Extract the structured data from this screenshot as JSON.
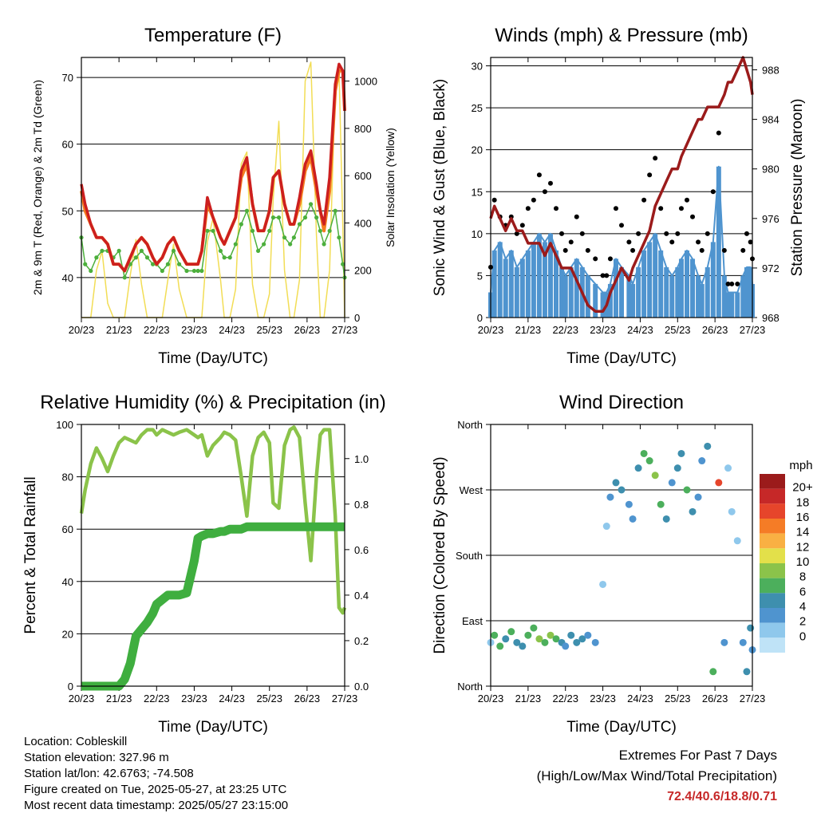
{
  "x_ticks": [
    "20/23",
    "21/23",
    "22/23",
    "23/23",
    "24/23",
    "25/23",
    "26/23",
    "27/23"
  ],
  "xlabel": "Time (Day/UTC)",
  "colors": {
    "temp_2m": "#cc1f1f",
    "temp_9m": "#f57c1f",
    "dewpoint": "#4caf3c",
    "solar": "#f2dd55",
    "wind": "#4f94cf",
    "gust": "#000000",
    "pressure": "#9b1b1b",
    "rh": "#8bc34a",
    "precip": "#3fae3f"
  },
  "chart_data": [
    {
      "type": "line",
      "title": "Temperature (F)",
      "xlabel": "Time (Day/UTC)",
      "ylabel": "2m & 9m T (Red, Orange) & 2m Td (Green)",
      "y2label": "Solar Insolation (Yellow)",
      "ylim": [
        34,
        73
      ],
      "y_ticks": [
        40,
        50,
        60,
        70
      ],
      "y2lim": [
        0,
        1100
      ],
      "y2_ticks": [
        0,
        200,
        400,
        600,
        800,
        1000
      ],
      "grid": true,
      "x": [
        20.0,
        20.1,
        20.25,
        20.4,
        20.55,
        20.7,
        20.85,
        21.0,
        21.15,
        21.3,
        21.45,
        21.6,
        21.75,
        21.9,
        22.0,
        22.15,
        22.3,
        22.45,
        22.6,
        22.8,
        23.0,
        23.1,
        23.2,
        23.35,
        23.5,
        23.7,
        23.8,
        23.95,
        24.1,
        24.25,
        24.4,
        24.55,
        24.7,
        24.85,
        25.0,
        25.1,
        25.25,
        25.4,
        25.55,
        25.65,
        25.8,
        25.95,
        26.1,
        26.25,
        26.35,
        26.45,
        26.6,
        26.75,
        26.85,
        26.95,
        27.0
      ],
      "series": [
        {
          "name": "2m T",
          "values": [
            54,
            51,
            48,
            46,
            46,
            45,
            42,
            42,
            41,
            43,
            45,
            46,
            45,
            43,
            42,
            43,
            45,
            46,
            44,
            42,
            42,
            42,
            44,
            52,
            49,
            46,
            45,
            47,
            49,
            56,
            58,
            51,
            47,
            47,
            50,
            55,
            56,
            51,
            48,
            48,
            52,
            57,
            59,
            54,
            50,
            48,
            55,
            69,
            72,
            71,
            65
          ]
        },
        {
          "name": "9m T",
          "values": [
            53,
            50,
            48,
            46,
            46,
            45,
            42,
            42,
            41,
            43,
            45,
            46,
            45,
            43,
            42,
            43,
            45,
            46,
            44,
            42,
            42,
            42,
            44,
            51,
            49,
            46,
            45,
            47,
            49,
            55,
            57,
            51,
            47,
            47,
            50,
            55,
            56,
            51,
            48,
            48,
            51,
            56,
            58,
            53,
            50,
            47,
            53,
            68,
            71,
            71,
            65
          ]
        },
        {
          "name": "2m Td",
          "values": [
            46,
            42,
            41,
            43,
            44,
            44,
            43,
            44,
            40,
            42,
            43,
            44,
            43,
            42,
            42,
            41,
            42,
            44,
            42,
            41,
            41,
            41,
            41,
            47,
            47,
            44,
            43,
            43,
            45,
            48,
            50,
            47,
            44,
            45,
            47,
            49,
            49,
            46,
            45,
            46,
            48,
            49,
            51,
            49,
            47,
            45,
            47,
            50,
            46,
            42,
            40
          ]
        },
        {
          "name": "Solar",
          "values": [
            0,
            0,
            0,
            200,
            280,
            60,
            0,
            0,
            0,
            180,
            330,
            140,
            0,
            0,
            0,
            0,
            160,
            310,
            120,
            0,
            0,
            0,
            0,
            320,
            420,
            160,
            0,
            0,
            120,
            650,
            700,
            140,
            0,
            0,
            100,
            500,
            830,
            200,
            0,
            0,
            160,
            1000,
            1080,
            350,
            0,
            0,
            200,
            980,
            1050,
            400,
            0
          ]
        }
      ]
    },
    {
      "type": "line",
      "title": "Winds (mph) & Pressure (mb)",
      "xlabel": "Time (Day/UTC)",
      "ylabel": "Sonic Wind & Gust (Blue, Black)",
      "y2label": "Station Pressure (Maroon)",
      "ylim": [
        0,
        31
      ],
      "y_ticks": [
        0,
        5,
        10,
        15,
        20,
        25,
        30
      ],
      "y2lim": [
        968,
        989
      ],
      "y2_ticks": [
        968,
        972,
        976,
        980,
        984,
        988
      ],
      "grid": true,
      "x": [
        20.0,
        20.1,
        20.25,
        20.4,
        20.55,
        20.7,
        20.85,
        21.0,
        21.15,
        21.3,
        21.45,
        21.6,
        21.75,
        21.9,
        22.0,
        22.15,
        22.3,
        22.45,
        22.6,
        22.8,
        23.0,
        23.1,
        23.2,
        23.35,
        23.5,
        23.7,
        23.8,
        23.95,
        24.1,
        24.25,
        24.4,
        24.55,
        24.7,
        24.85,
        25.0,
        25.1,
        25.25,
        25.4,
        25.55,
        25.65,
        25.8,
        25.95,
        26.1,
        26.25,
        26.35,
        26.45,
        26.6,
        26.75,
        26.85,
        26.95,
        27.0
      ],
      "series": [
        {
          "name": "Wind",
          "values": [
            3,
            8,
            9,
            7,
            8,
            6,
            7,
            8,
            9,
            10,
            9,
            10,
            8,
            6,
            5,
            6,
            7,
            6,
            5,
            4,
            3,
            3,
            4,
            7,
            6,
            5,
            4,
            6,
            8,
            9,
            10,
            8,
            6,
            5,
            6,
            7,
            8,
            7,
            5,
            4,
            6,
            9,
            18,
            5,
            3,
            3,
            3,
            5,
            6,
            6,
            4
          ]
        },
        {
          "name": "Gust",
          "values": [
            6,
            14,
            12,
            11,
            12,
            10,
            11,
            13,
            14,
            17,
            15,
            16,
            13,
            10,
            8,
            9,
            12,
            10,
            8,
            7,
            5,
            5,
            7,
            13,
            11,
            9,
            8,
            10,
            14,
            17,
            19,
            13,
            10,
            9,
            10,
            13,
            14,
            12,
            9,
            8,
            10,
            15,
            22,
            8,
            4,
            4,
            4,
            8,
            10,
            9,
            7
          ]
        },
        {
          "name": "Pressure",
          "values": [
            976,
            977,
            976,
            975,
            976,
            975,
            975,
            974,
            974,
            974,
            973,
            974,
            973,
            972,
            972,
            972,
            971,
            970,
            969,
            968.5,
            968.5,
            969,
            970,
            971,
            972,
            971,
            972,
            973,
            974,
            975,
            977,
            978,
            979,
            980,
            980,
            981,
            982,
            983,
            984,
            984,
            985,
            985,
            985,
            986,
            987,
            987,
            988,
            989,
            988,
            987,
            986
          ]
        }
      ]
    },
    {
      "type": "line",
      "title": "Relative Humidity (%) & Precipitation (in)",
      "xlabel": "Time (Day/UTC)",
      "ylabel": "Percent & Total Rainfall",
      "ylim": [
        0,
        100
      ],
      "y_ticks": [
        0,
        20,
        40,
        60,
        80,
        100
      ],
      "y2lim": [
        0,
        1.15
      ],
      "y2_ticks": [
        0.0,
        0.2,
        0.4,
        0.6,
        0.8,
        1.0
      ],
      "grid": true,
      "x": [
        20.0,
        20.1,
        20.25,
        20.4,
        20.55,
        20.7,
        20.85,
        21.0,
        21.15,
        21.3,
        21.45,
        21.6,
        21.75,
        21.9,
        22.0,
        22.15,
        22.3,
        22.45,
        22.6,
        22.8,
        23.0,
        23.1,
        23.2,
        23.35,
        23.5,
        23.7,
        23.8,
        23.95,
        24.1,
        24.25,
        24.4,
        24.55,
        24.7,
        24.85,
        25.0,
        25.1,
        25.25,
        25.4,
        25.55,
        25.65,
        25.8,
        25.95,
        26.1,
        26.25,
        26.35,
        26.45,
        26.6,
        26.75,
        26.85,
        26.95,
        27.0
      ],
      "series": [
        {
          "name": "RH",
          "values": [
            66,
            75,
            85,
            91,
            87,
            82,
            88,
            93,
            95,
            94,
            93,
            96,
            98,
            98,
            96,
            98,
            97,
            96,
            97,
            98,
            96,
            95,
            96,
            88,
            92,
            95,
            97,
            96,
            94,
            80,
            65,
            88,
            95,
            97,
            93,
            70,
            68,
            92,
            98,
            99,
            95,
            70,
            48,
            80,
            96,
            98,
            98,
            65,
            30,
            28,
            30
          ]
        },
        {
          "name": "Precip",
          "values": [
            0,
            0,
            0,
            0,
            0,
            0,
            0,
            0,
            0.03,
            0.1,
            0.22,
            0.25,
            0.28,
            0.32,
            0.36,
            0.38,
            0.4,
            0.4,
            0.4,
            0.41,
            0.55,
            0.65,
            0.66,
            0.67,
            0.67,
            0.68,
            0.68,
            0.69,
            0.69,
            0.69,
            0.7,
            0.7,
            0.7,
            0.7,
            0.7,
            0.7,
            0.7,
            0.7,
            0.7,
            0.7,
            0.7,
            0.7,
            0.7,
            0.7,
            0.7,
            0.7,
            0.7,
            0.7,
            0.7,
            0.7,
            0.7
          ]
        }
      ]
    },
    {
      "type": "scatter",
      "title": "Wind Direction",
      "xlabel": "Time (Day/UTC)",
      "ylabel": "Direction (Colored By Speed)",
      "y_ticks": [
        "North",
        "East",
        "South",
        "West",
        "North"
      ],
      "ylim": [
        0,
        360
      ],
      "grid": true,
      "legend": {
        "unit": "mph",
        "position": "right",
        "levels": [
          "0",
          "2",
          "4",
          "6",
          "8",
          "10",
          "12",
          "14",
          "16",
          "18",
          "20+"
        ],
        "colors": [
          "#bfe3f7",
          "#8fc8ec",
          "#4f94cf",
          "#3e8fae",
          "#4caf5c",
          "#8bc34a",
          "#e3e04a",
          "#f9b043",
          "#f57c26",
          "#e6452b",
          "#c62828",
          "#9b1b1b"
        ]
      },
      "x": [
        20.0,
        20.1,
        20.25,
        20.4,
        20.55,
        20.7,
        20.85,
        21.0,
        21.15,
        21.3,
        21.45,
        21.6,
        21.75,
        21.9,
        22.0,
        22.15,
        22.3,
        22.45,
        22.6,
        22.8,
        23.0,
        23.1,
        23.2,
        23.35,
        23.5,
        23.7,
        23.8,
        23.95,
        24.1,
        24.25,
        24.4,
        24.55,
        24.7,
        24.85,
        25.0,
        25.1,
        25.25,
        25.4,
        25.55,
        25.65,
        25.8,
        25.95,
        26.1,
        26.25,
        26.35,
        26.45,
        26.6,
        26.75,
        26.85,
        26.95,
        27.0
      ],
      "series": [
        {
          "name": "Direction",
          "values": [
            60,
            70,
            55,
            65,
            75,
            60,
            55,
            70,
            80,
            65,
            60,
            70,
            65,
            60,
            55,
            70,
            60,
            65,
            70,
            60,
            140,
            220,
            260,
            280,
            270,
            250,
            230,
            300,
            320,
            310,
            290,
            250,
            230,
            280,
            300,
            320,
            270,
            240,
            260,
            310,
            330,
            20,
            280,
            60,
            300,
            240,
            200,
            60,
            20,
            80,
            50
          ]
        },
        {
          "name": "Speed",
          "values": [
            3,
            8,
            9,
            7,
            8,
            6,
            7,
            8,
            9,
            10,
            9,
            10,
            8,
            6,
            5,
            6,
            7,
            6,
            5,
            4,
            3,
            3,
            4,
            7,
            6,
            5,
            4,
            6,
            8,
            9,
            10,
            8,
            6,
            5,
            6,
            7,
            8,
            7,
            5,
            4,
            6,
            9,
            18,
            5,
            3,
            3,
            3,
            5,
            6,
            6,
            4
          ]
        }
      ]
    }
  ],
  "footer": {
    "location": "Location: Cobleskill",
    "elevation": "Station elevation: 327.96 m",
    "latlon": "Station lat/lon: 42.6763; -74.508",
    "created": "Figure created on Tue, 2025-05-27, at 23:25 UTC",
    "recent": "Most recent data timestamp: 2025/05/27 23:15:00"
  },
  "extremes": {
    "title": "Extremes For Past 7 Days",
    "subtitle": "(High/Low/Max Wind/Total Precipitation)",
    "value": "72.4/40.6/18.8/0.71"
  }
}
